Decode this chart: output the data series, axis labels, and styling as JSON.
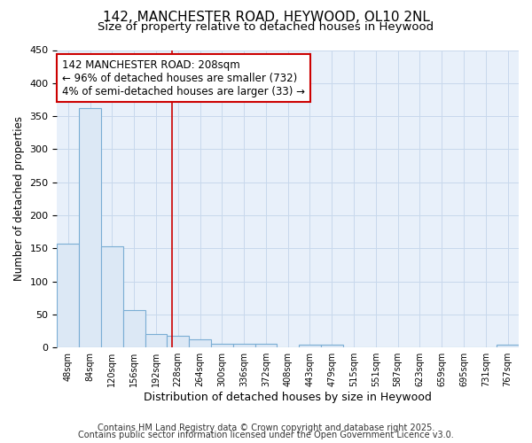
{
  "title_line1": "142, MANCHESTER ROAD, HEYWOOD, OL10 2NL",
  "title_line2": "Size of property relative to detached houses in Heywood",
  "xlabel": "Distribution of detached houses by size in Heywood",
  "ylabel": "Number of detached properties",
  "categories": [
    "48sqm",
    "84sqm",
    "120sqm",
    "156sqm",
    "192sqm",
    "228sqm",
    "264sqm",
    "300sqm",
    "336sqm",
    "372sqm",
    "408sqm",
    "443sqm",
    "479sqm",
    "515sqm",
    "551sqm",
    "587sqm",
    "623sqm",
    "659sqm",
    "695sqm",
    "731sqm",
    "767sqm"
  ],
  "values": [
    157,
    362,
    153,
    57,
    20,
    18,
    13,
    6,
    5,
    5,
    0,
    4,
    4,
    0,
    0,
    0,
    0,
    0,
    0,
    0,
    4
  ],
  "bar_color": "#dce8f5",
  "bar_edge_color": "#7aadd4",
  "bar_linewidth": 0.8,
  "vline_x": 4.72,
  "vline_color": "#cc0000",
  "vline_linewidth": 1.2,
  "annotation_text": "142 MANCHESTER ROAD: 208sqm\n← 96% of detached houses are smaller (732)\n4% of semi-detached houses are larger (33) →",
  "annotation_box_color": "#ffffff",
  "annotation_box_edge": "#cc0000",
  "annotation_fontsize": 8.5,
  "ylim": [
    0,
    450
  ],
  "yticks": [
    0,
    50,
    100,
    150,
    200,
    250,
    300,
    350,
    400,
    450
  ],
  "grid_color": "#c8d8ec",
  "bg_color": "#ffffff",
  "plot_bg_color": "#e8f0fa",
  "footer_line1": "Contains HM Land Registry data © Crown copyright and database right 2025.",
  "footer_line2": "Contains public sector information licensed under the Open Government Licence v3.0.",
  "footer_fontsize": 7.0,
  "title_fontsize": 11,
  "subtitle_fontsize": 9.5
}
